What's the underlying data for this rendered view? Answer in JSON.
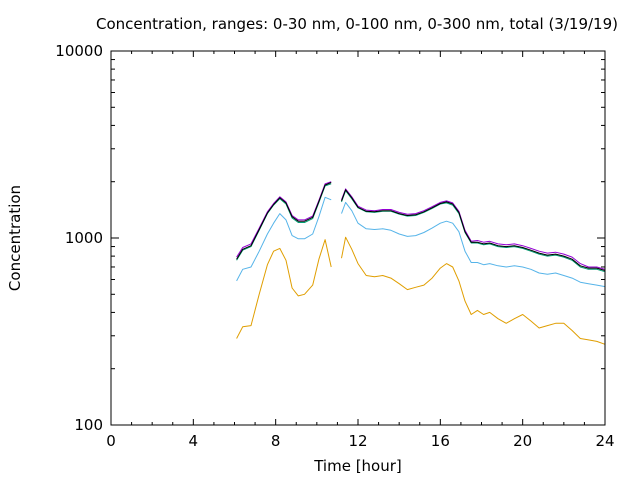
{
  "chart_data": {
    "type": "line",
    "title": "Concentration, ranges: 0-30 nm, 0-100 nm, 0-300 nm, total (3/19/19)",
    "xlabel": "Time [hour]",
    "ylabel": "Concentration",
    "xlim": [
      0,
      24
    ],
    "ylim": [
      100,
      10000
    ],
    "yscale": "log",
    "xticks": [
      "0",
      "4",
      "8",
      "12",
      "16",
      "20",
      "24"
    ],
    "yticks": [
      "100",
      "1000",
      "10000"
    ],
    "grid": false,
    "legend": "none",
    "series": [
      {
        "color": "#e09e00",
        "x": [
          6.1,
          6.4,
          6.8,
          7.2,
          7.6,
          7.9,
          8.2,
          8.5,
          8.8,
          9.1,
          9.4,
          9.8,
          10.1,
          10.4,
          10.7,
          11.0,
          11.2,
          11.4,
          11.7,
          12.0,
          12.4,
          12.8,
          13.2,
          13.6,
          14.0,
          14.4,
          14.8,
          15.2,
          15.6,
          16.0,
          16.3,
          16.6,
          16.9,
          17.2,
          17.5,
          17.8,
          18.1,
          18.4,
          18.8,
          19.2,
          19.6,
          20.0,
          20.4,
          20.8,
          21.2,
          21.6,
          22.0,
          22.4,
          22.8,
          23.2,
          23.6,
          24.0
        ],
        "y": [
          290,
          335,
          340,
          500,
          720,
          850,
          880,
          760,
          540,
          490,
          500,
          560,
          770,
          980,
          700,
          null,
          780,
          1010,
          870,
          730,
          630,
          620,
          630,
          610,
          570,
          530,
          545,
          560,
          610,
          690,
          730,
          700,
          590,
          460,
          390,
          410,
          390,
          400,
          370,
          350,
          370,
          390,
          360,
          330,
          340,
          350,
          350,
          320,
          290,
          285,
          280,
          270
        ]
      },
      {
        "color": "#56b4e9",
        "x": [
          6.1,
          6.4,
          6.8,
          7.2,
          7.6,
          7.9,
          8.2,
          8.5,
          8.8,
          9.1,
          9.4,
          9.8,
          10.1,
          10.4,
          10.7,
          11.0,
          11.2,
          11.4,
          11.7,
          12.0,
          12.4,
          12.8,
          13.2,
          13.6,
          14.0,
          14.4,
          14.8,
          15.2,
          15.6,
          16.0,
          16.3,
          16.6,
          16.9,
          17.2,
          17.5,
          17.8,
          18.1,
          18.4,
          18.8,
          19.2,
          19.6,
          20.0,
          20.4,
          20.8,
          21.2,
          21.6,
          22.0,
          22.4,
          22.8,
          23.2,
          23.6,
          24.0
        ],
        "y": [
          590,
          680,
          700,
          850,
          1050,
          1200,
          1350,
          1250,
          1030,
          990,
          990,
          1050,
          1300,
          1650,
          1600,
          null,
          1350,
          1550,
          1400,
          1200,
          1120,
          1110,
          1120,
          1100,
          1050,
          1020,
          1030,
          1070,
          1130,
          1200,
          1230,
          1200,
          1080,
          850,
          740,
          740,
          720,
          730,
          710,
          700,
          710,
          700,
          680,
          650,
          640,
          650,
          630,
          610,
          580,
          570,
          560,
          550
        ]
      },
      {
        "color": "#009e73",
        "x": [
          6.1,
          6.4,
          6.8,
          7.2,
          7.6,
          7.9,
          8.2,
          8.5,
          8.8,
          9.1,
          9.4,
          9.8,
          10.1,
          10.4,
          10.7,
          11.0,
          11.2,
          11.4,
          11.7,
          12.0,
          12.4,
          12.8,
          13.2,
          13.6,
          14.0,
          14.4,
          14.8,
          15.2,
          15.6,
          16.0,
          16.3,
          16.6,
          16.9,
          17.2,
          17.5,
          17.8,
          18.1,
          18.4,
          18.8,
          19.2,
          19.6,
          20.0,
          20.4,
          20.8,
          21.2,
          21.6,
          22.0,
          22.4,
          22.8,
          23.2,
          23.6,
          24.0
        ],
        "y": [
          760,
          860,
          900,
          1100,
          1350,
          1500,
          1620,
          1520,
          1280,
          1210,
          1210,
          1270,
          1550,
          1900,
          1950,
          null,
          1560,
          1790,
          1620,
          1450,
          1380,
          1370,
          1390,
          1390,
          1340,
          1310,
          1320,
          1370,
          1440,
          1520,
          1540,
          1500,
          1350,
          1070,
          940,
          940,
          920,
          930,
          900,
          890,
          900,
          880,
          850,
          820,
          800,
          810,
          790,
          760,
          700,
          680,
          680,
          660
        ]
      },
      {
        "color": "#9400d3",
        "x": [
          6.1,
          6.4,
          6.8,
          7.2,
          7.6,
          7.9,
          8.2,
          8.5,
          8.8,
          9.1,
          9.4,
          9.8,
          10.1,
          10.4,
          10.7,
          11.0,
          11.2,
          11.4,
          11.7,
          12.0,
          12.4,
          12.8,
          13.2,
          13.6,
          14.0,
          14.4,
          14.8,
          15.2,
          15.6,
          16.0,
          16.3,
          16.6,
          16.9,
          17.2,
          17.5,
          17.8,
          18.1,
          18.4,
          18.8,
          19.2,
          19.6,
          20.0,
          20.4,
          20.8,
          21.2,
          21.6,
          22.0,
          22.4,
          22.8,
          23.2,
          23.6,
          24.0
        ],
        "y": [
          790,
          890,
          930,
          1130,
          1380,
          1530,
          1660,
          1560,
          1320,
          1250,
          1250,
          1310,
          1590,
          1950,
          2000,
          null,
          1600,
          1830,
          1660,
          1480,
          1410,
          1400,
          1420,
          1420,
          1370,
          1340,
          1350,
          1400,
          1470,
          1550,
          1580,
          1540,
          1390,
          1100,
          960,
          970,
          950,
          960,
          930,
          920,
          930,
          910,
          880,
          850,
          830,
          840,
          820,
          790,
          730,
          700,
          700,
          680
        ]
      },
      {
        "color": "#000000",
        "x": [
          6.1,
          6.4,
          6.8,
          7.2,
          7.6,
          7.9,
          8.2,
          8.5,
          8.8,
          9.1,
          9.4,
          9.8,
          10.1,
          10.4,
          10.7,
          11.0,
          11.2,
          11.4,
          11.7,
          12.0,
          12.4,
          12.8,
          13.2,
          13.6,
          14.0,
          14.4,
          14.8,
          15.2,
          15.6,
          16.0,
          16.3,
          16.6,
          16.9,
          17.2,
          17.5,
          17.8,
          18.1,
          18.4,
          18.8,
          19.2,
          19.6,
          20.0,
          20.4,
          20.8,
          21.2,
          21.6,
          22.0,
          22.4,
          22.8,
          23.2,
          23.6,
          24.0
        ],
        "y": [
          770,
          870,
          910,
          1110,
          1360,
          1510,
          1640,
          1540,
          1300,
          1230,
          1230,
          1290,
          1570,
          1920,
          1980,
          null,
          1580,
          1810,
          1640,
          1460,
          1390,
          1380,
          1400,
          1400,
          1350,
          1320,
          1330,
          1380,
          1450,
          1530,
          1560,
          1520,
          1370,
          1080,
          950,
          950,
          930,
          940,
          910,
          900,
          910,
          890,
          860,
          830,
          810,
          820,
          800,
          770,
          710,
          690,
          690,
          670
        ]
      }
    ]
  }
}
